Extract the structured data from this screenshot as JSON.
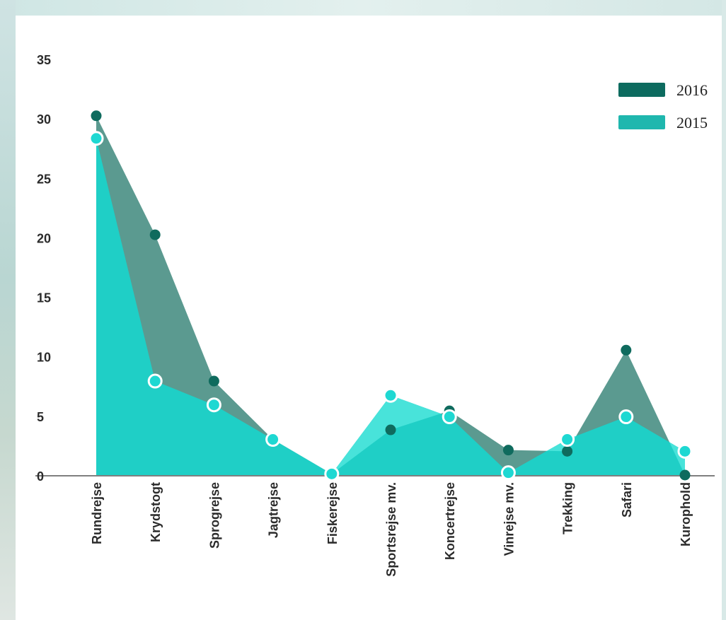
{
  "chart_data": {
    "type": "area",
    "categories": [
      "Rundrejse",
      "Krydstogt",
      "Sprogrejse",
      "Jagtrejse",
      "Fiskerejse",
      "Sportsrejse mv.",
      "Koncertrejse",
      "Vinrejse mv.",
      "Trekking",
      "Safari",
      "Kurophold"
    ],
    "series": [
      {
        "name": "2016",
        "values": [
          30.2,
          20.2,
          7.9,
          3.0,
          0.1,
          3.8,
          5.4,
          2.1,
          2.0,
          10.5,
          0.0
        ]
      },
      {
        "name": "2015",
        "values": [
          28.3,
          7.9,
          5.9,
          3.0,
          0.1,
          6.7,
          4.9,
          0.2,
          3.0,
          4.9,
          2.0
        ]
      }
    ],
    "y_ticks": [
      "35",
      "30",
      "25",
      "20",
      "15",
      "10",
      "5",
      "0"
    ],
    "ylim": [
      0,
      35
    ],
    "grid": false,
    "legend_position": "top-right",
    "colors": {
      "2016_fill": "#5b9a90",
      "2016_marker": "#0f6b5e",
      "2015_fill": "#1fcfc6",
      "2015_fill_over": "#48e3da",
      "2015_marker": "#1ed8d2",
      "legend_2016": "#0d6b5f",
      "legend_2015": "#1fb7ae",
      "axis": "#555555"
    }
  }
}
